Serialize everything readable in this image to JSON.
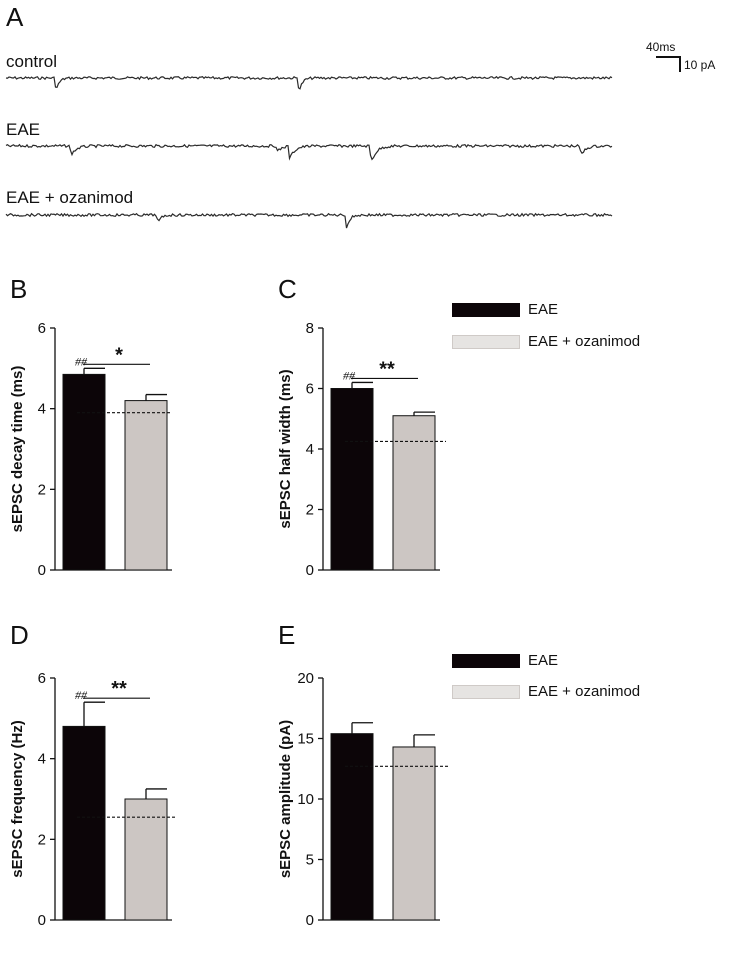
{
  "panel_letters": {
    "a": "A",
    "b": "B",
    "c": "C",
    "d": "D",
    "e": "E"
  },
  "traces": {
    "control": "control",
    "eae": "EAE",
    "eae_ozanimod": "EAE + ozanimod"
  },
  "scale_bar": {
    "time": "40ms",
    "current": "10 pA"
  },
  "legend": {
    "eae": "EAE",
    "eae_ozanimod": "EAE + ozanimod",
    "eae_color": "#0c0508",
    "eae_ozanimod_color": "#ccc6c3"
  },
  "chart_data": [
    {
      "id": "B",
      "type": "bar",
      "categories": [
        "EAE",
        "EAE + ozanimod"
      ],
      "values": [
        4.85,
        4.2
      ],
      "errors": [
        0.15,
        0.15
      ],
      "control_baseline": 3.9,
      "ylabel": "sEPSC decay time (ms)",
      "ylim": [
        0,
        6
      ],
      "yticks": [
        0,
        2,
        4,
        6
      ],
      "annotations": {
        "hash": "##",
        "sig": "*"
      }
    },
    {
      "id": "C",
      "type": "bar",
      "categories": [
        "EAE",
        "EAE + ozanimod"
      ],
      "values": [
        6.0,
        5.1
      ],
      "errors": [
        0.2,
        0.12
      ],
      "control_baseline": 4.25,
      "ylabel": "sEPSC half width (ms)",
      "ylim": [
        0,
        8
      ],
      "yticks": [
        0,
        2,
        4,
        6,
        8
      ],
      "annotations": {
        "hash": "##",
        "sig": "**"
      }
    },
    {
      "id": "D",
      "type": "bar",
      "categories": [
        "EAE",
        "EAE + ozanimod"
      ],
      "values": [
        4.8,
        3.0
      ],
      "errors": [
        0.6,
        0.25
      ],
      "control_baseline": 2.55,
      "ylabel": "sEPSC frequency (Hz)",
      "ylim": [
        0,
        6
      ],
      "yticks": [
        0,
        2,
        4,
        6
      ],
      "annotations": {
        "hash": "##",
        "sig": "**"
      }
    },
    {
      "id": "E",
      "type": "bar",
      "categories": [
        "EAE",
        "EAE + ozanimod"
      ],
      "values": [
        15.4,
        14.3
      ],
      "errors": [
        0.9,
        1.0
      ],
      "control_baseline": 12.7,
      "ylabel": "sEPSC amplitude (pA)",
      "ylim": [
        0,
        20
      ],
      "yticks": [
        0,
        5,
        10,
        15,
        20
      ],
      "annotations": {
        "hash": "",
        "sig": ""
      }
    }
  ]
}
